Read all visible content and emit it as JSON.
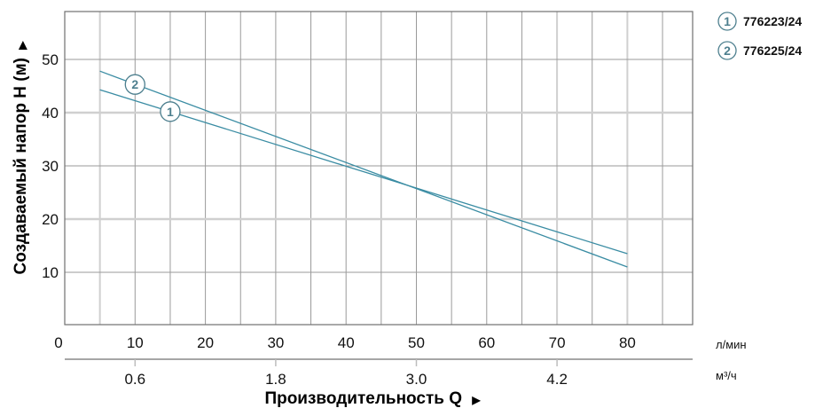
{
  "chart_data": {
    "type": "line",
    "title": "",
    "ylabel": "Создаваемый напор Н (м)",
    "ylabel_arrow": "▶",
    "xlabel": "Производительность Q",
    "xlabel_arrow": "▶",
    "x_unit_primary": "л/мин",
    "x_unit_secondary": "м³/ч",
    "xlim": [
      0,
      90
    ],
    "ylim": [
      0,
      59
    ],
    "grid": true,
    "x_ticks_primary": [
      {
        "value": 0,
        "label": "0"
      },
      {
        "value": 10,
        "label": "10"
      },
      {
        "value": 20,
        "label": "20"
      },
      {
        "value": 30,
        "label": "30"
      },
      {
        "value": 40,
        "label": "40"
      },
      {
        "value": 50,
        "label": "50"
      },
      {
        "value": 60,
        "label": "60"
      },
      {
        "value": 70,
        "label": "70"
      },
      {
        "value": 80,
        "label": "80"
      }
    ],
    "x_ticks_secondary": [
      {
        "value": 10,
        "label": "0.6"
      },
      {
        "value": 30,
        "label": "1.8"
      },
      {
        "value": 50,
        "label": "3.0"
      },
      {
        "value": 70,
        "label": "4.2"
      }
    ],
    "y_ticks": [
      {
        "value": 10,
        "label": "10"
      },
      {
        "value": 20,
        "label": "20"
      },
      {
        "value": 30,
        "label": "30"
      },
      {
        "value": 40,
        "label": "40"
      },
      {
        "value": 50,
        "label": "50"
      }
    ],
    "legend_position": "top-right",
    "series": [
      {
        "id": "1",
        "name": "776223/24",
        "x": [
          5,
          80
        ],
        "y": [
          44.3,
          13.5
        ],
        "label_at": [
          15,
          40.2
        ]
      },
      {
        "id": "2",
        "name": "776225/24",
        "x": [
          5,
          80
        ],
        "y": [
          47.8,
          11.0
        ],
        "label_at": [
          10,
          45.3
        ]
      }
    ],
    "colors": {
      "line": "#3a8ca3",
      "badge": "#4d7f8e",
      "grid_dark": "#9a9a9a",
      "grid_light": "#d0d0d0",
      "border": "#707070"
    }
  }
}
